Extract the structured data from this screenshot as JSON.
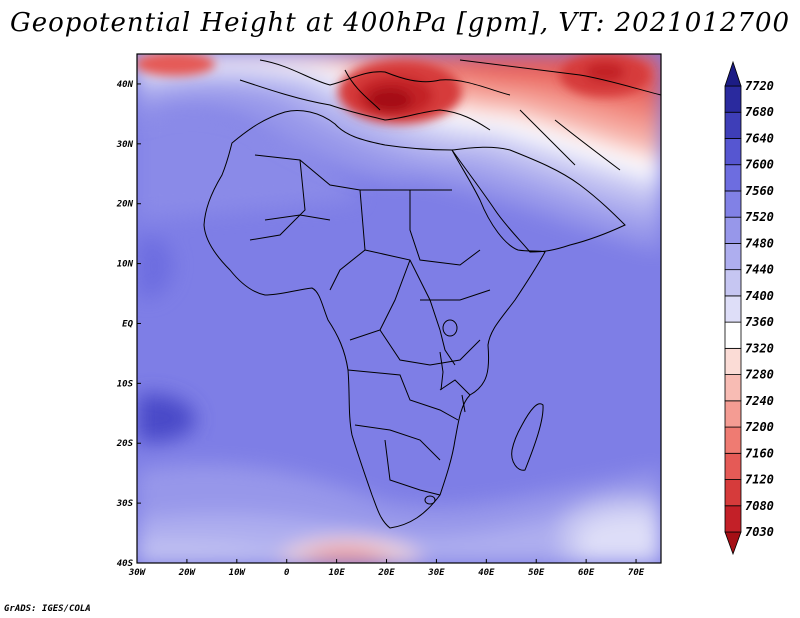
{
  "title": "Geopotential Height at 400hPa [gpm], VT: 2021012700",
  "credit": "GrADS: IGES/COLA",
  "map": {
    "lon_range": [
      -30,
      75
    ],
    "lat_range": [
      -40,
      45
    ],
    "lon_ticks": [
      {
        "value": -30,
        "label": "30W"
      },
      {
        "value": -20,
        "label": "20W"
      },
      {
        "value": -10,
        "label": "10W"
      },
      {
        "value": 0,
        "label": "0"
      },
      {
        "value": 10,
        "label": "10E"
      },
      {
        "value": 20,
        "label": "20E"
      },
      {
        "value": 30,
        "label": "30E"
      },
      {
        "value": 40,
        "label": "40E"
      },
      {
        "value": 50,
        "label": "50E"
      },
      {
        "value": 60,
        "label": "60E"
      },
      {
        "value": 70,
        "label": "70E"
      }
    ],
    "lat_ticks": [
      {
        "value": 40,
        "label": "40N"
      },
      {
        "value": 30,
        "label": "30N"
      },
      {
        "value": 20,
        "label": "20N"
      },
      {
        "value": 10,
        "label": "10N"
      },
      {
        "value": 0,
        "label": "EQ"
      },
      {
        "value": -10,
        "label": "10S"
      },
      {
        "value": -20,
        "label": "20S"
      },
      {
        "value": -30,
        "label": "30S"
      },
      {
        "value": -40,
        "label": "40S"
      }
    ]
  },
  "colorbar": {
    "levels": [
      "7030",
      "7080",
      "7120",
      "7160",
      "7200",
      "7240",
      "7280",
      "7320",
      "7360",
      "7400",
      "7440",
      "7480",
      "7520",
      "7560",
      "7600",
      "7640",
      "7680",
      "7720"
    ],
    "colors": [
      "#a50f15",
      "#c32028",
      "#d63b3b",
      "#e55a56",
      "#ef7b72",
      "#f49c93",
      "#f8bcb4",
      "#fbdcd6",
      "#ffffff",
      "#dedef8",
      "#c6c6f2",
      "#aeaeef",
      "#9797ea",
      "#8181e6",
      "#6d6de0",
      "#5656d1",
      "#3e3eb8",
      "#2a2a9e",
      "#1c1c85"
    ]
  }
}
